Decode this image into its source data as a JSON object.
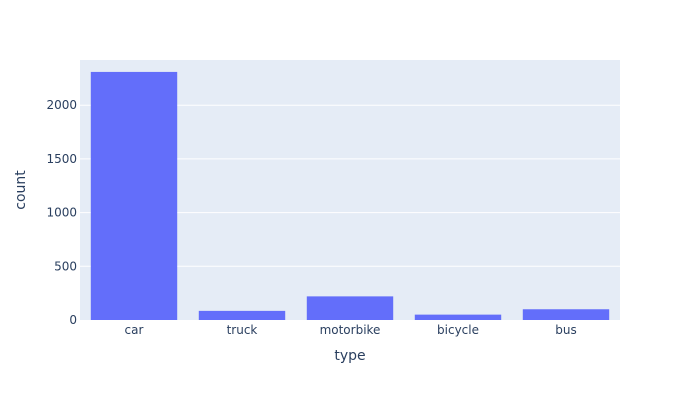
{
  "chart_data": {
    "type": "bar",
    "categories": [
      "car",
      "truck",
      "motorbike",
      "bicycle",
      "bus"
    ],
    "values": [
      2310,
      85,
      220,
      50,
      100
    ],
    "xlabel": "type",
    "ylabel": "count",
    "ylim": [
      0,
      2421
    ],
    "yticks": [
      0,
      500,
      1000,
      1500,
      2000
    ],
    "ytick_labels": [
      "0",
      "500",
      "1000",
      "1500",
      "2000"
    ],
    "grid": true,
    "legend": "none",
    "colors": {
      "bar": "#636efa",
      "plot_background": "#e5ecf6",
      "grid": "#ffffff",
      "text": "#2a3f5f"
    }
  }
}
